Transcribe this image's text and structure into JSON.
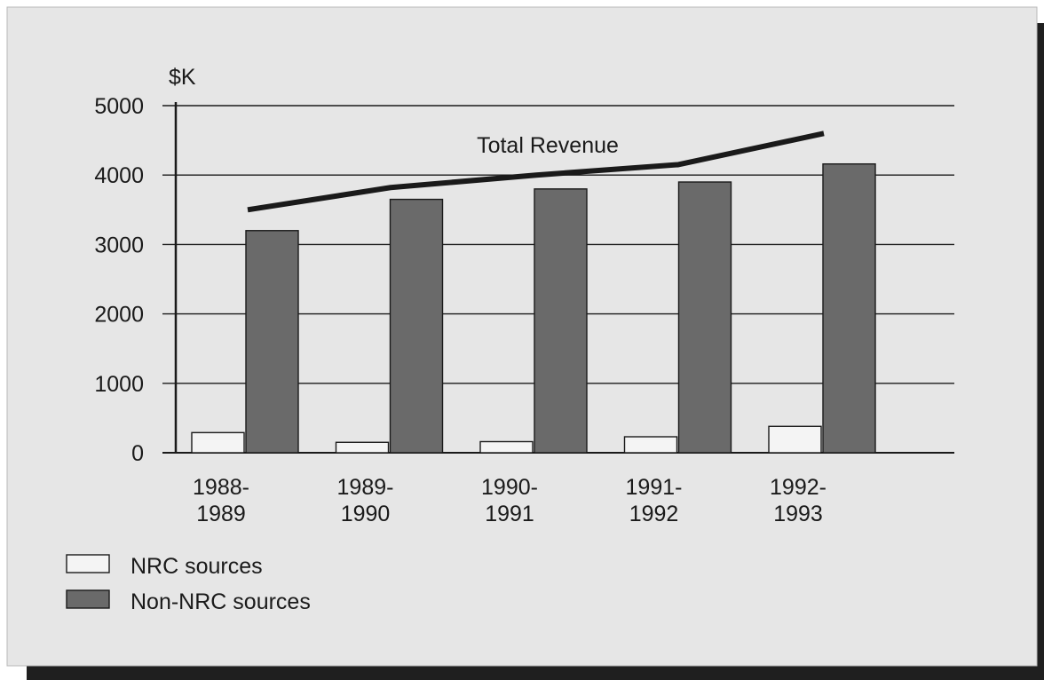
{
  "colors": {
    "page_background": "#ffffff",
    "backdrop_shadow": "#1f1f1f",
    "panel_background": "#e6e6e6",
    "nrc_bar": "#f4f4f4",
    "non_nrc_bar": "#6a6a6a",
    "total_line": "#1a1a1a",
    "gridline": "#1a1a1a",
    "text": "#1a1a1a"
  },
  "chart_data": {
    "type": "bar",
    "title": "",
    "xlabel": "",
    "ylabel": "$K",
    "ylim": [
      0,
      5000
    ],
    "yticks": [
      0,
      1000,
      2000,
      3000,
      4000,
      5000
    ],
    "grid": true,
    "legend_position": "bottom-left",
    "categories": [
      [
        "1988-",
        "1989"
      ],
      [
        "1989-",
        "1990"
      ],
      [
        "1990-",
        "1991"
      ],
      [
        "1991-",
        "1992"
      ],
      [
        "1992-",
        "1993"
      ]
    ],
    "series": [
      {
        "name": "NRC sources",
        "type": "bar",
        "color": "#f4f4f4",
        "values": [
          290,
          150,
          160,
          230,
          380
        ]
      },
      {
        "name": "Non-NRC sources",
        "type": "bar",
        "color": "#6a6a6a",
        "values": [
          3200,
          3650,
          3800,
          3900,
          4160
        ]
      },
      {
        "name": "Total Revenue",
        "type": "line",
        "color": "#1a1a1a",
        "values": [
          3500,
          3820,
          4000,
          4150,
          4600
        ]
      }
    ],
    "annotations": [
      {
        "text": "Total Revenue",
        "series": "Total Revenue"
      }
    ]
  }
}
